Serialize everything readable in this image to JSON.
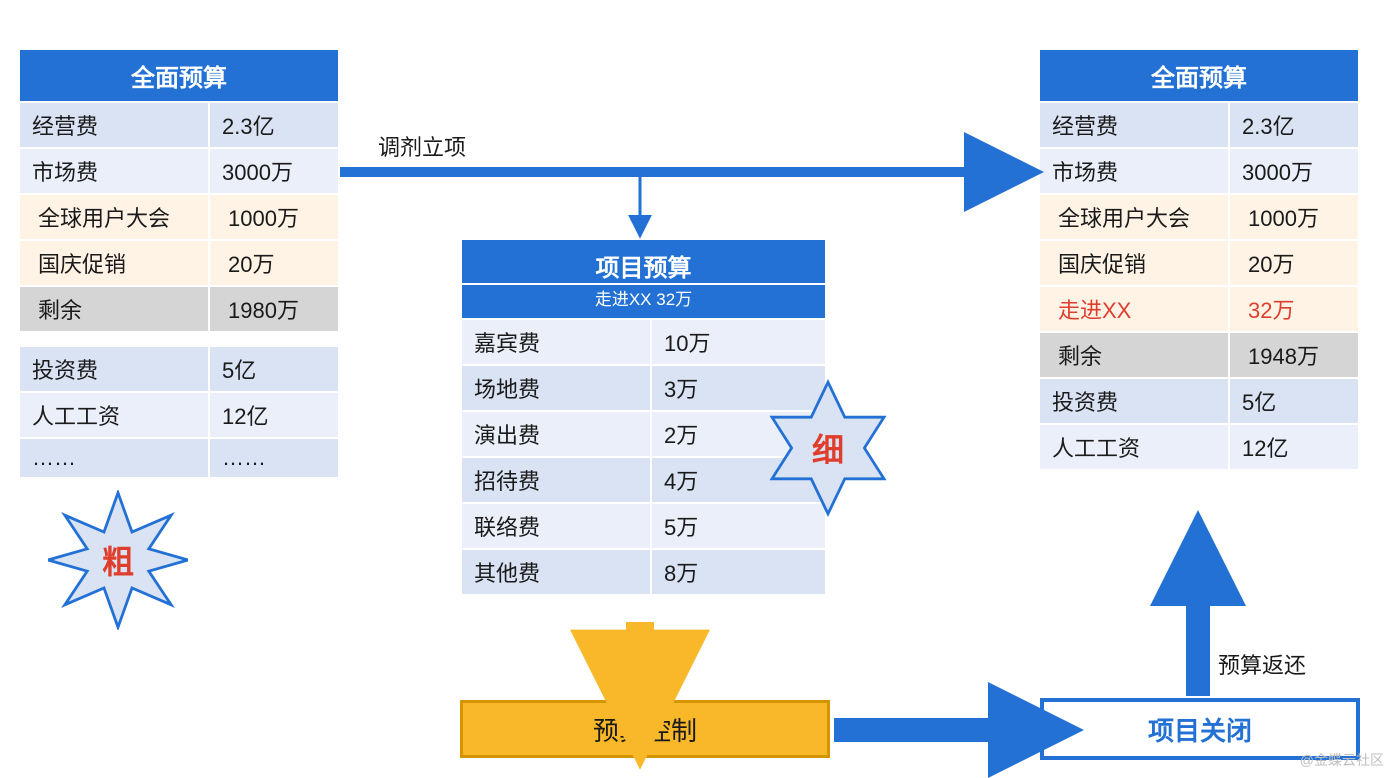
{
  "colors": {
    "header_bg": "#2371d5",
    "header_text": "#ffffff",
    "row_even": "#dae3f3",
    "row_odd": "#eaeff9",
    "row_cream": "#fff3e6",
    "row_grey": "#d5d5d5",
    "highlight_text": "#e03e2d",
    "arrow_blue": "#2371d5",
    "arrow_orange": "#f8b82a",
    "burst_fill": "#dae3f3",
    "burst_stroke": "#2371d5",
    "box_orange_fill": "#f8b82a",
    "box_orange_border": "#d59400",
    "box_blue_border": "#2371d5"
  },
  "left_table": {
    "title": "全面预算",
    "col_width_label": 190,
    "col_width_value": 130,
    "rows": [
      {
        "label": "经营费",
        "value": "2.3亿",
        "style": "r0"
      },
      {
        "label": "市场费",
        "value": "3000万",
        "style": "r1"
      },
      {
        "label": "全球用户大会",
        "value": "1000万",
        "style": "cream"
      },
      {
        "label": "国庆促销",
        "value": "20万",
        "style": "cream"
      },
      {
        "label": "剩余",
        "value": "1980万",
        "style": "grey"
      },
      {
        "label": "__SPACER__",
        "value": "",
        "style": "spacer"
      },
      {
        "label": "投资费",
        "value": "5亿",
        "style": "r0"
      },
      {
        "label": "人工工资",
        "value": "12亿",
        "style": "r1"
      },
      {
        "label": "……",
        "value": "……",
        "style": "r0"
      }
    ]
  },
  "center_table": {
    "title": "项目预算",
    "subtitle": "走进XX 32万",
    "col_width_label": 190,
    "col_width_value": 175,
    "rows": [
      {
        "label": "嘉宾费",
        "value": "10万",
        "style": "r1"
      },
      {
        "label": "场地费",
        "value": "3万",
        "style": "r0"
      },
      {
        "label": "演出费",
        "value": "2万",
        "style": "r1"
      },
      {
        "label": "招待费",
        "value": "4万",
        "style": "r0"
      },
      {
        "label": "联络费",
        "value": "5万",
        "style": "r1"
      },
      {
        "label": "其他费",
        "value": "8万",
        "style": "r0"
      }
    ]
  },
  "right_table": {
    "title": "全面预算",
    "col_width_label": 190,
    "col_width_value": 130,
    "rows": [
      {
        "label": "经营费",
        "value": "2.3亿",
        "style": "r0"
      },
      {
        "label": "市场费",
        "value": "3000万",
        "style": "r1"
      },
      {
        "label": "全球用户大会",
        "value": "1000万",
        "style": "cream"
      },
      {
        "label": "国庆促销",
        "value": "20万",
        "style": "cream"
      },
      {
        "label": "走进XX",
        "value": "32万",
        "style": "cream",
        "highlight": true
      },
      {
        "label": "剩余",
        "value": "1948万",
        "style": "grey"
      },
      {
        "label": "投资费",
        "value": "5亿",
        "style": "r0"
      },
      {
        "label": "人工工资",
        "value": "12亿",
        "style": "r1"
      }
    ]
  },
  "bursts": {
    "left": "粗",
    "right": "细"
  },
  "flow": {
    "top_label": "调剂立项",
    "orange_box": "预算控制",
    "blue_box": "项目关闭",
    "return_label": "预算返还"
  },
  "watermark": "@金蝶云社区"
}
